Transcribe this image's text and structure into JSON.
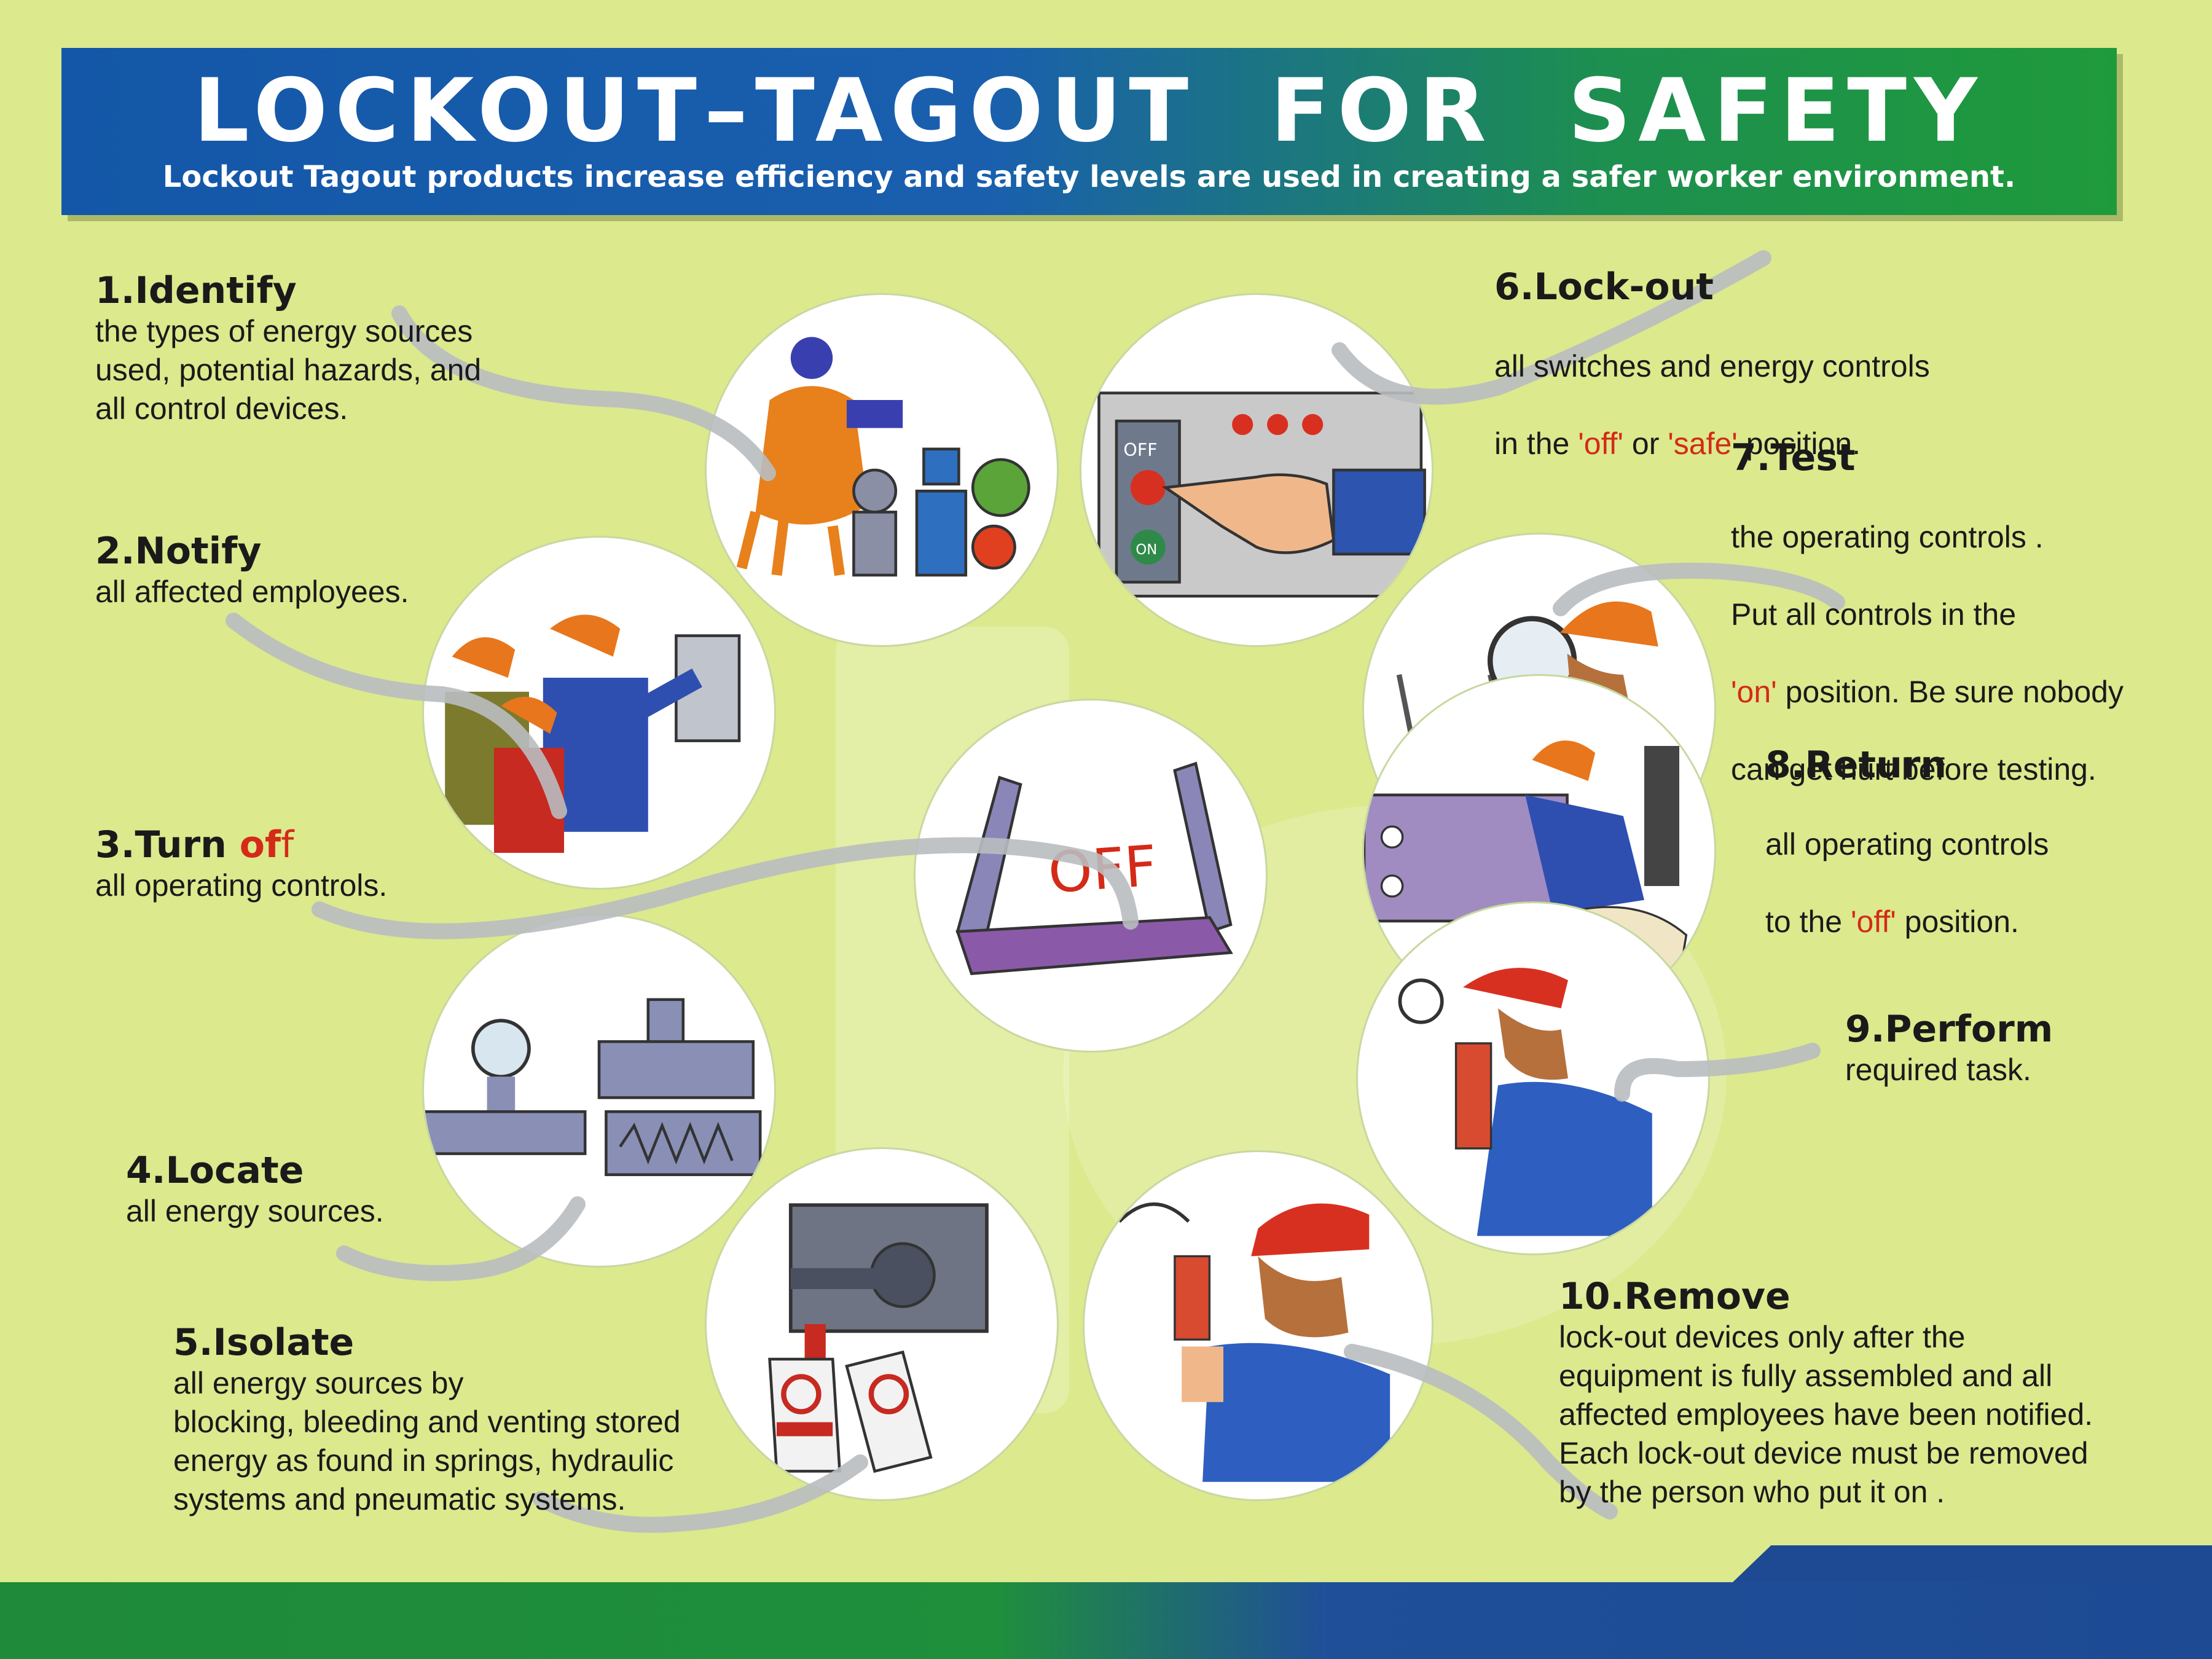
{
  "header": {
    "title": "LOCKOUT–TAGOUT  FOR  SAFETY",
    "subtitle": "Lockout Tagout products increase efficiency and safety levels are used in creating a safer worker environment."
  },
  "steps": [
    {
      "title": "1.Identify",
      "desc": "the types of energy sources\nused, potential hazards, and\nall control devices."
    },
    {
      "title": "2.Notify",
      "desc": "all affected employees."
    },
    {
      "title_a": "3.Turn ",
      "title_b": "of",
      "title_c": "f",
      "desc": "all operating controls."
    },
    {
      "title": "4.Locate",
      "desc": "all energy sources."
    },
    {
      "title": "5.Isolate",
      "desc": "all energy sources by\nblocking, bleeding and venting stored\nenergy as found in springs, hydraulic\nsystems and pneumatic systems."
    },
    {
      "title": "6.Lock-out",
      "line1": "all switches and energy controls",
      "l2a": "in the ",
      "l2b": "'off'",
      "l2c": " or ",
      "l2d": "'safe'",
      "l2e": " position."
    },
    {
      "title": "7.Test",
      "line1": "the operating controls .",
      "line2": "Put all controls in the",
      "l3a": "'on'",
      "l3b": " position. Be sure nobody",
      "line4": "can get hurt before testing."
    },
    {
      "title": "8.Return",
      "line1": "all operating controls",
      "l2a": "to the ",
      "l2b": "'off'",
      "l2c": " position."
    },
    {
      "title": "9.Perform",
      "desc": "required task."
    },
    {
      "title": "10.Remove",
      "desc": "lock-out devices only after the\nequipment is fully assembled and all\naffected employees have been notified.\nEach lock-out device must be removed\nby the person who put it on ."
    }
  ],
  "illustrations": {
    "off_text": "OFF",
    "on_text": "ON",
    "switch_off_text": "OFF",
    "center_sign_text": "OFF"
  },
  "colors": {
    "background": "#dce98d",
    "header_blue": "#1457a8",
    "header_green": "#1f9a3b",
    "highlight_red": "#d42a18",
    "footer_blue": "#1d4a93"
  }
}
